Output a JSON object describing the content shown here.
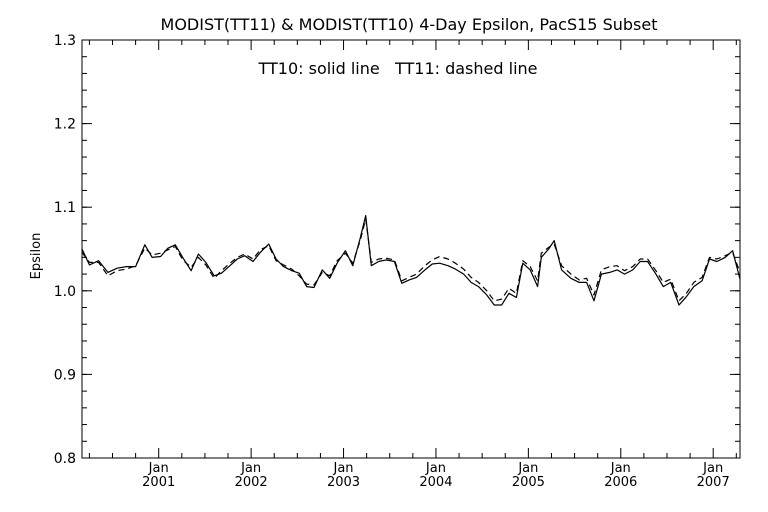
{
  "chart_data": {
    "type": "line",
    "title": "MODIST(TT11) & MODIST(TT10) 4-Day Epsilon, PacS15 Subset",
    "annotation": "TT10: solid line   TT11: dashed line",
    "ylabel": "Epsilon",
    "xlabel": "",
    "xlim": [
      2000.17,
      2007.29
    ],
    "ylim": [
      0.8,
      1.3
    ],
    "grid": false,
    "y_ticks": [
      0.8,
      0.9,
      1.0,
      1.1,
      1.2,
      1.3
    ],
    "y_tick_labels": [
      "0.8",
      "0.9",
      "1.0",
      "1.1",
      "1.2",
      "1.3"
    ],
    "x_major_ticks": [
      {
        "x": 2001.0,
        "month": "Jan",
        "year": "2001"
      },
      {
        "x": 2002.0,
        "month": "Jan",
        "year": "2002"
      },
      {
        "x": 2003.0,
        "month": "Jan",
        "year": "2003"
      },
      {
        "x": 2004.0,
        "month": "Jan",
        "year": "2004"
      },
      {
        "x": 2005.0,
        "month": "Jan",
        "year": "2005"
      },
      {
        "x": 2006.0,
        "month": "Jan",
        "year": "2006"
      },
      {
        "x": 2007.0,
        "month": "Jan",
        "year": "2007"
      }
    ],
    "series": [
      {
        "name": "TT10",
        "style": "solid",
        "color": "#000000",
        "points": [
          [
            2000.17,
            1.05
          ],
          [
            2000.25,
            1.031
          ],
          [
            2000.35,
            1.036
          ],
          [
            2000.45,
            1.022
          ],
          [
            2000.55,
            1.027
          ],
          [
            2000.65,
            1.029
          ],
          [
            2000.75,
            1.029
          ],
          [
            2000.85,
            1.055
          ],
          [
            2000.93,
            1.04
          ],
          [
            2001.02,
            1.041
          ],
          [
            2001.1,
            1.051
          ],
          [
            2001.18,
            1.055
          ],
          [
            2001.26,
            1.04
          ],
          [
            2001.35,
            1.024
          ],
          [
            2001.43,
            1.044
          ],
          [
            2001.51,
            1.034
          ],
          [
            2001.6,
            1.018
          ],
          [
            2001.68,
            1.021
          ],
          [
            2001.77,
            1.03
          ],
          [
            2001.85,
            1.038
          ],
          [
            2001.93,
            1.042
          ],
          [
            2002.02,
            1.035
          ],
          [
            2002.1,
            1.046
          ],
          [
            2002.19,
            1.056
          ],
          [
            2002.27,
            1.038
          ],
          [
            2002.35,
            1.029
          ],
          [
            2002.44,
            1.024
          ],
          [
            2002.52,
            1.021
          ],
          [
            2002.6,
            1.005
          ],
          [
            2002.68,
            1.004
          ],
          [
            2002.77,
            1.025
          ],
          [
            2002.85,
            1.015
          ],
          [
            2002.93,
            1.033
          ],
          [
            2003.02,
            1.048
          ],
          [
            2003.1,
            1.03
          ],
          [
            2003.18,
            1.063
          ],
          [
            2003.24,
            1.09
          ],
          [
            2003.3,
            1.03
          ],
          [
            2003.38,
            1.035
          ],
          [
            2003.46,
            1.037
          ],
          [
            2003.55,
            1.035
          ],
          [
            2003.63,
            1.009
          ],
          [
            2003.71,
            1.013
          ],
          [
            2003.79,
            1.016
          ],
          [
            2003.88,
            1.025
          ],
          [
            2003.96,
            1.032
          ],
          [
            2004.04,
            1.033
          ],
          [
            2004.13,
            1.03
          ],
          [
            2004.21,
            1.026
          ],
          [
            2004.3,
            1.02
          ],
          [
            2004.38,
            1.01
          ],
          [
            2004.46,
            1.005
          ],
          [
            2004.55,
            0.995
          ],
          [
            2004.63,
            0.983
          ],
          [
            2004.71,
            0.983
          ],
          [
            2004.79,
            0.997
          ],
          [
            2004.87,
            0.992
          ],
          [
            2004.94,
            1.033
          ],
          [
            2005.02,
            1.025
          ],
          [
            2005.1,
            1.005
          ],
          [
            2005.14,
            1.04
          ],
          [
            2005.22,
            1.05
          ],
          [
            2005.28,
            1.06
          ],
          [
            2005.36,
            1.025
          ],
          [
            2005.46,
            1.015
          ],
          [
            2005.55,
            1.01
          ],
          [
            2005.63,
            1.01
          ],
          [
            2005.71,
            0.988
          ],
          [
            2005.79,
            1.02
          ],
          [
            2005.88,
            1.022
          ],
          [
            2005.96,
            1.025
          ],
          [
            2006.04,
            1.02
          ],
          [
            2006.13,
            1.025
          ],
          [
            2006.21,
            1.035
          ],
          [
            2006.29,
            1.035
          ],
          [
            2006.38,
            1.02
          ],
          [
            2006.46,
            1.005
          ],
          [
            2006.54,
            1.01
          ],
          [
            2006.63,
            0.983
          ],
          [
            2006.71,
            0.993
          ],
          [
            2006.79,
            1.005
          ],
          [
            2006.88,
            1.012
          ],
          [
            2006.96,
            1.038
          ],
          [
            2007.04,
            1.035
          ],
          [
            2007.13,
            1.04
          ],
          [
            2007.21,
            1.048
          ],
          [
            2007.29,
            1.014
          ]
        ]
      },
      {
        "name": "TT11",
        "style": "dashed",
        "color": "#000000",
        "points": [
          [
            2000.17,
            1.046
          ],
          [
            2000.25,
            1.034
          ],
          [
            2000.35,
            1.034
          ],
          [
            2000.45,
            1.018
          ],
          [
            2000.55,
            1.024
          ],
          [
            2000.65,
            1.026
          ],
          [
            2000.75,
            1.03
          ],
          [
            2000.85,
            1.051
          ],
          [
            2000.93,
            1.043
          ],
          [
            2001.02,
            1.045
          ],
          [
            2001.1,
            1.049
          ],
          [
            2001.18,
            1.053
          ],
          [
            2001.26,
            1.037
          ],
          [
            2001.35,
            1.028
          ],
          [
            2001.43,
            1.04
          ],
          [
            2001.51,
            1.031
          ],
          [
            2001.6,
            1.015
          ],
          [
            2001.68,
            1.024
          ],
          [
            2001.77,
            1.033
          ],
          [
            2001.85,
            1.04
          ],
          [
            2001.93,
            1.044
          ],
          [
            2002.02,
            1.038
          ],
          [
            2002.1,
            1.049
          ],
          [
            2002.19,
            1.054
          ],
          [
            2002.27,
            1.036
          ],
          [
            2002.35,
            1.031
          ],
          [
            2002.44,
            1.026
          ],
          [
            2002.52,
            1.018
          ],
          [
            2002.6,
            1.008
          ],
          [
            2002.68,
            1.007
          ],
          [
            2002.77,
            1.022
          ],
          [
            2002.85,
            1.018
          ],
          [
            2002.93,
            1.036
          ],
          [
            2003.02,
            1.045
          ],
          [
            2003.1,
            1.033
          ],
          [
            2003.18,
            1.06
          ],
          [
            2003.24,
            1.086
          ],
          [
            2003.3,
            1.034
          ],
          [
            2003.38,
            1.038
          ],
          [
            2003.46,
            1.039
          ],
          [
            2003.55,
            1.037
          ],
          [
            2003.63,
            1.012
          ],
          [
            2003.71,
            1.016
          ],
          [
            2003.79,
            1.02
          ],
          [
            2003.88,
            1.03
          ],
          [
            2003.96,
            1.037
          ],
          [
            2004.04,
            1.041
          ],
          [
            2004.13,
            1.038
          ],
          [
            2004.21,
            1.033
          ],
          [
            2004.3,
            1.026
          ],
          [
            2004.38,
            1.016
          ],
          [
            2004.46,
            1.01
          ],
          [
            2004.55,
            1.0
          ],
          [
            2004.63,
            0.988
          ],
          [
            2004.71,
            0.99
          ],
          [
            2004.79,
            1.003
          ],
          [
            2004.87,
            0.997
          ],
          [
            2004.94,
            1.036
          ],
          [
            2005.02,
            1.029
          ],
          [
            2005.1,
            1.012
          ],
          [
            2005.14,
            1.045
          ],
          [
            2005.22,
            1.052
          ],
          [
            2005.28,
            1.056
          ],
          [
            2005.36,
            1.03
          ],
          [
            2005.46,
            1.02
          ],
          [
            2005.55,
            1.013
          ],
          [
            2005.63,
            1.015
          ],
          [
            2005.71,
            0.995
          ],
          [
            2005.79,
            1.025
          ],
          [
            2005.88,
            1.029
          ],
          [
            2005.96,
            1.03
          ],
          [
            2006.04,
            1.024
          ],
          [
            2006.13,
            1.029
          ],
          [
            2006.21,
            1.038
          ],
          [
            2006.29,
            1.038
          ],
          [
            2006.38,
            1.024
          ],
          [
            2006.46,
            1.01
          ],
          [
            2006.54,
            1.014
          ],
          [
            2006.63,
            0.988
          ],
          [
            2006.71,
            0.997
          ],
          [
            2006.79,
            1.01
          ],
          [
            2006.88,
            1.016
          ],
          [
            2006.96,
            1.04
          ],
          [
            2007.04,
            1.038
          ],
          [
            2007.13,
            1.042
          ],
          [
            2007.21,
            1.046
          ],
          [
            2007.29,
            1.022
          ]
        ]
      }
    ]
  }
}
